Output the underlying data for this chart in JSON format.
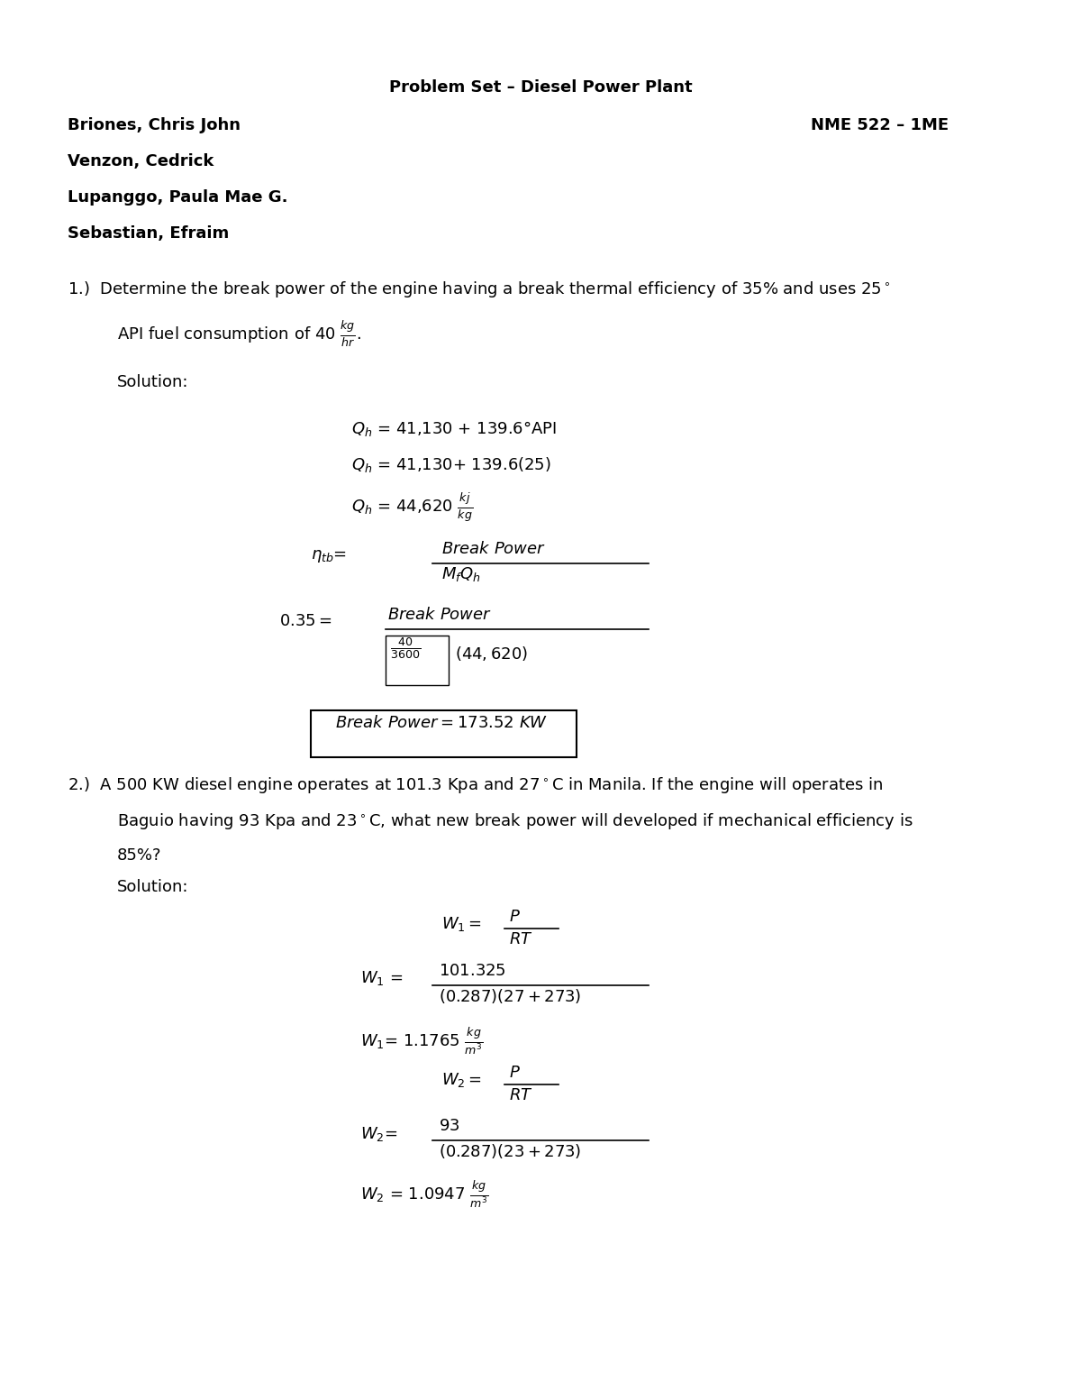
{
  "title": "Problem Set – Diesel Power Plant",
  "name1": "Briones, Chris John",
  "name2": "Venzon, Cedrick",
  "name3": "Lupanggo, Paula Mae G.",
  "name4": "Sebastian, Efraim",
  "course": "NME 522 – 1ME",
  "bg_color": "#ffffff",
  "text_color": "#000000"
}
